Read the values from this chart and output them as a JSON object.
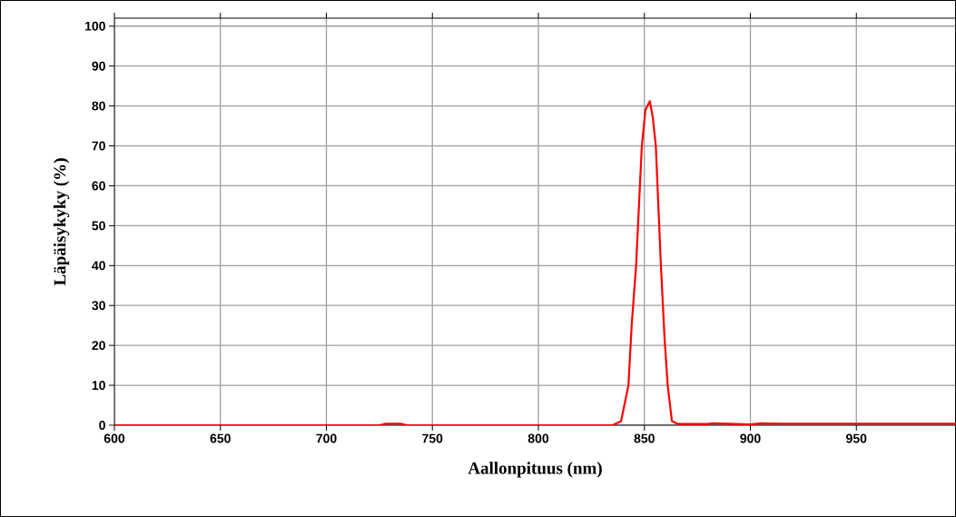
{
  "chart_data": {
    "type": "line",
    "xlabel": "Aallonpituus (nm)",
    "ylabel": "Läpäisykyky (%)",
    "xlim": [
      600,
      997
    ],
    "ylim": [
      0,
      102
    ],
    "xticks": [
      600,
      650,
      700,
      750,
      800,
      850,
      900,
      950
    ],
    "yticks": [
      0,
      10,
      20,
      30,
      40,
      50,
      60,
      70,
      80,
      90,
      100
    ],
    "grid": true,
    "marker": "none",
    "line_style": "solid",
    "series": [
      {
        "color": "#ff0000",
        "x": [
          600,
          700,
          725,
          728,
          735,
          738,
          745,
          800,
          835,
          839,
          842.5,
          844,
          846.1,
          848.8,
          850.5,
          852.6,
          854,
          855.4,
          857.8,
          859.5,
          861,
          863,
          866,
          880,
          882,
          900,
          905,
          915,
          950,
          997
        ],
        "values": [
          0,
          0,
          0,
          0.4,
          0.4,
          0,
          0,
          0,
          0,
          1,
          10,
          25,
          40,
          70,
          79,
          81.2,
          77,
          70,
          40,
          22,
          10,
          1,
          0.3,
          0.3,
          0.5,
          0.2,
          0.5,
          0.4,
          0.4,
          0.4
        ]
      }
    ]
  }
}
